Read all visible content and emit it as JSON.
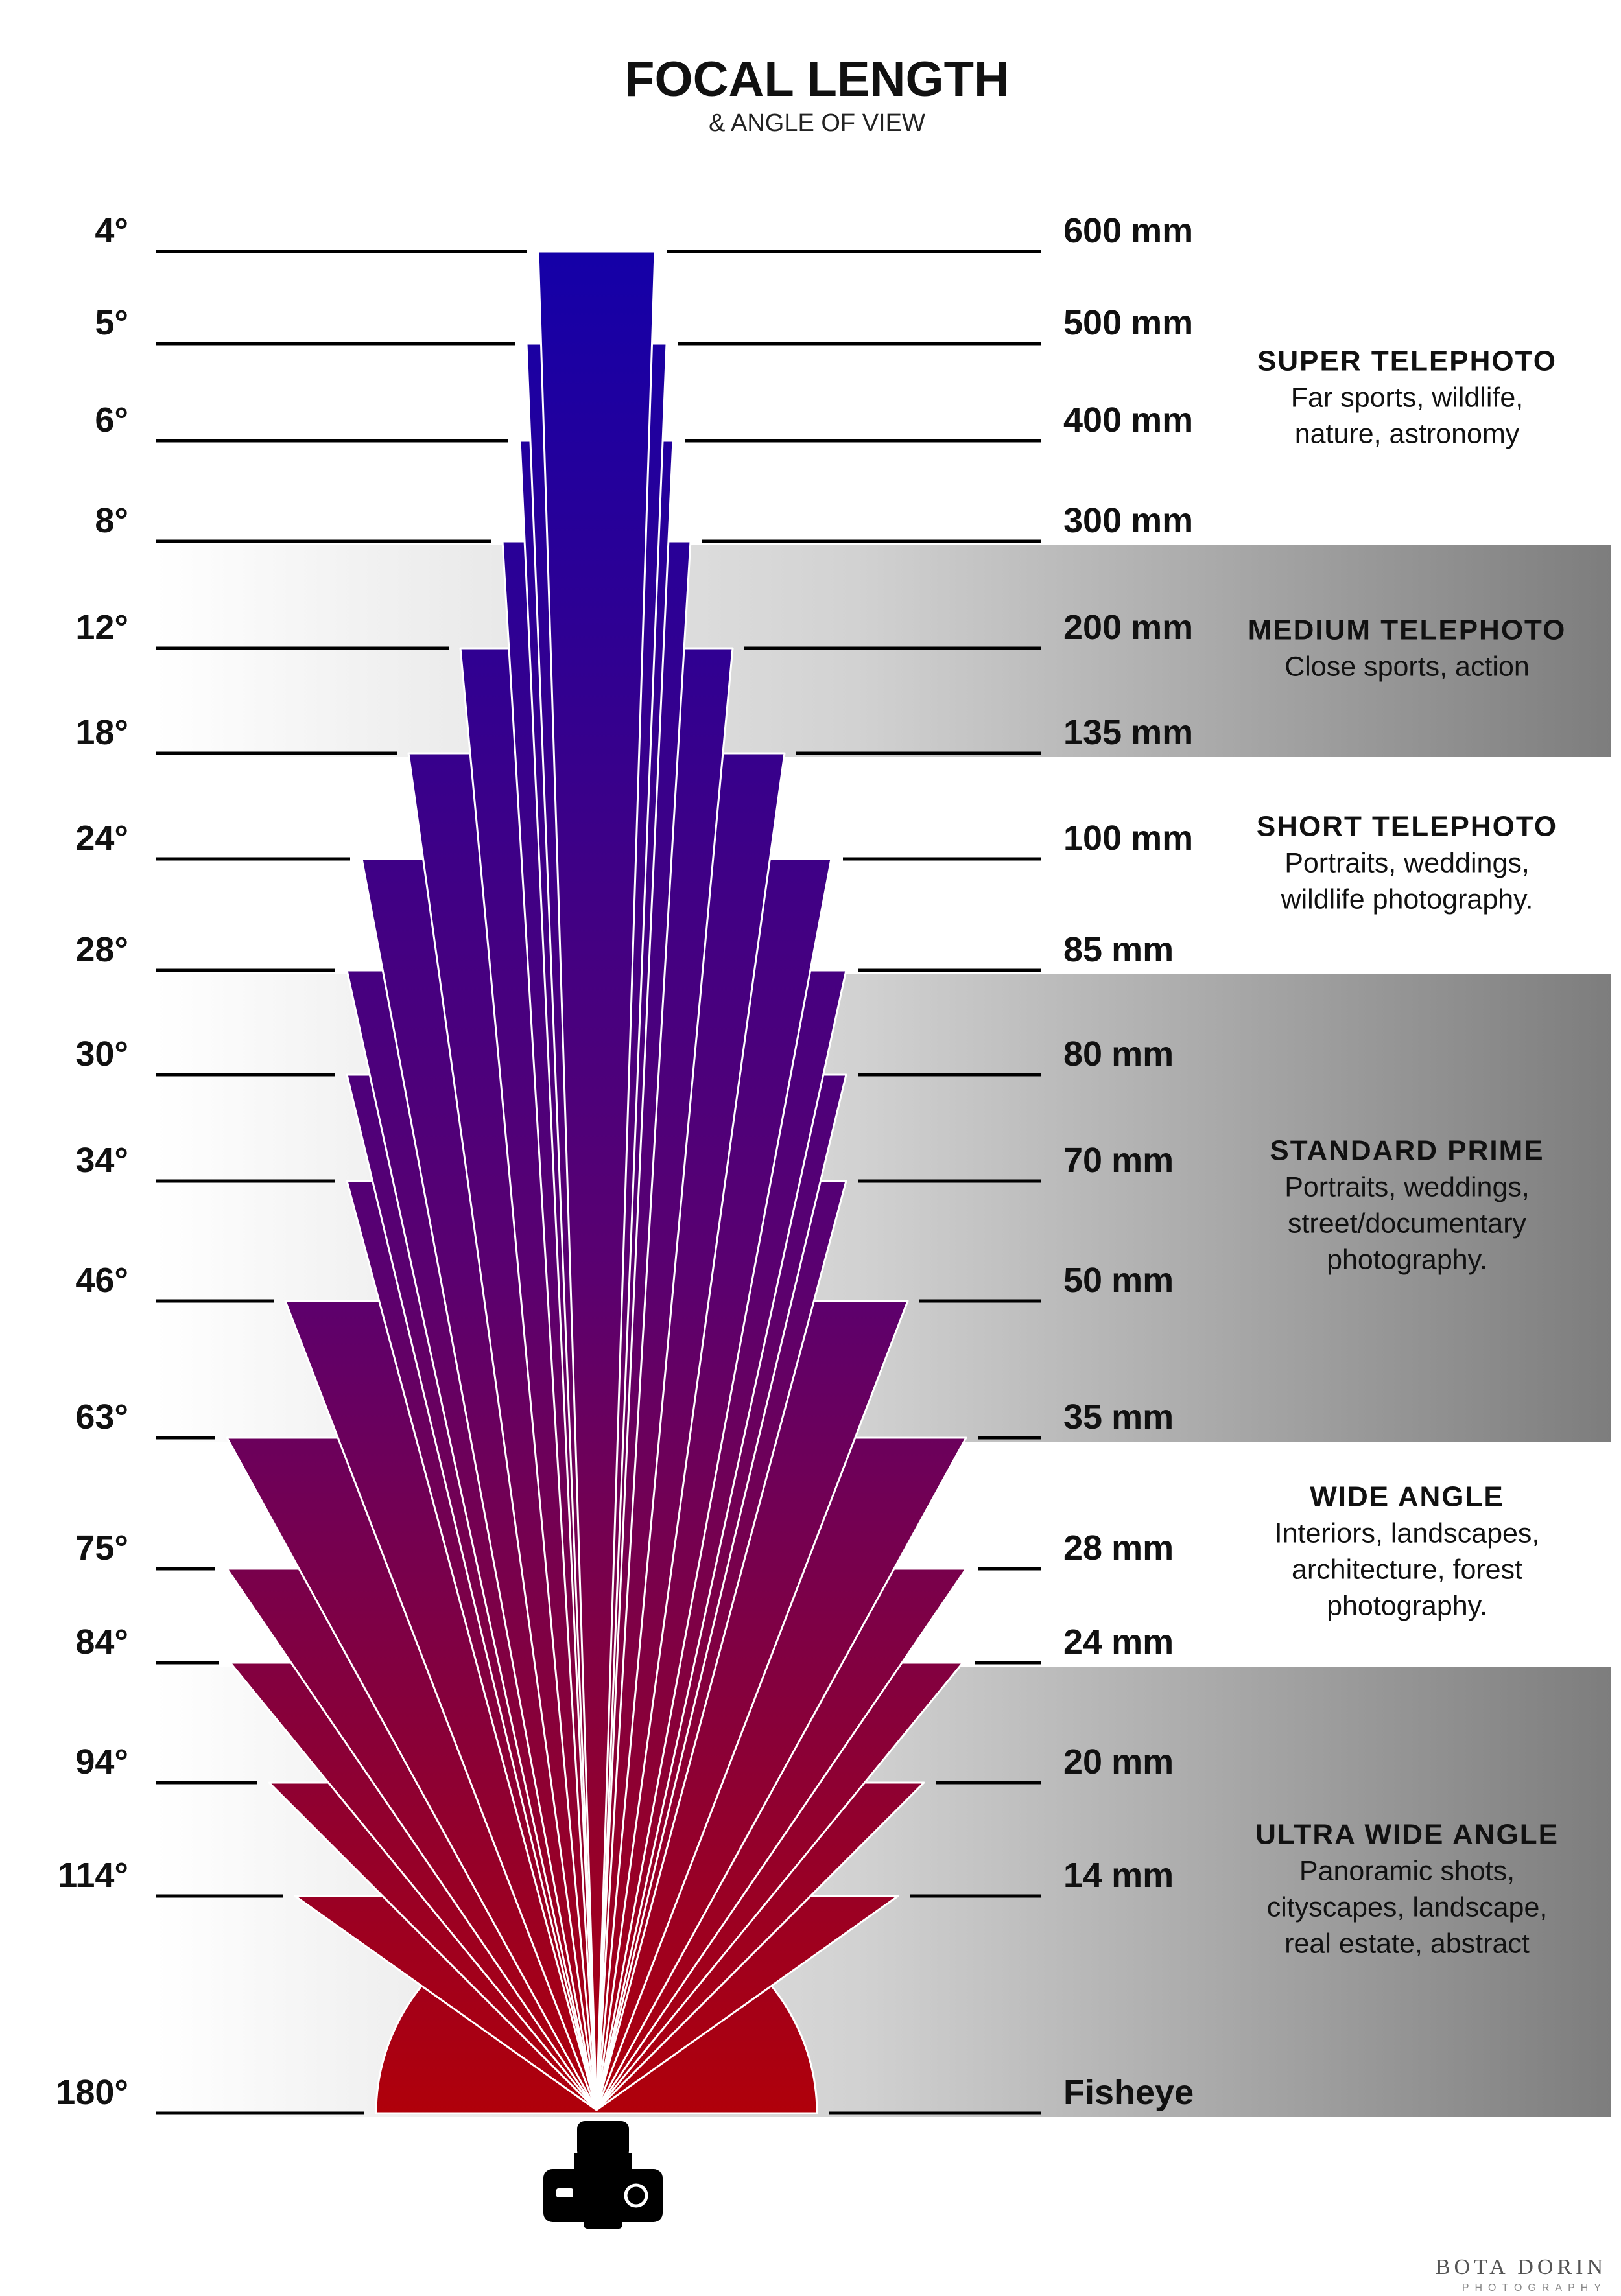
{
  "title": "FOCAL LENGTH",
  "subtitle": "& ANGLE OF VIEW",
  "colors": {
    "fan_top": "#1400a8",
    "fan_bottom": "#b0000a",
    "band_light": "#ffffff",
    "band_dark": "#7d7d7d",
    "text": "#111111"
  },
  "rows": [
    {
      "angle_deg": 4,
      "angle": "4°",
      "mm": "600",
      "unit": "mm"
    },
    {
      "angle_deg": 5,
      "angle": "5°",
      "mm": "500",
      "unit": "mm"
    },
    {
      "angle_deg": 6,
      "angle": "6°",
      "mm": "400",
      "unit": "mm"
    },
    {
      "angle_deg": 8,
      "angle": "8°",
      "mm": "300",
      "unit": "mm"
    },
    {
      "angle_deg": 12,
      "angle": "12°",
      "mm": "200",
      "unit": "mm"
    },
    {
      "angle_deg": 18,
      "angle": "18°",
      "mm": "135",
      "unit": "mm"
    },
    {
      "angle_deg": 24,
      "angle": "24°",
      "mm": "100",
      "unit": "mm"
    },
    {
      "angle_deg": 28,
      "angle": "28°",
      "mm": "85",
      "unit": "mm"
    },
    {
      "angle_deg": 30,
      "angle": "30°",
      "mm": "80",
      "unit": "mm"
    },
    {
      "angle_deg": 34,
      "angle": "34°",
      "mm": "70",
      "unit": "mm"
    },
    {
      "angle_deg": 46,
      "angle": "46°",
      "mm": "50",
      "unit": "mm"
    },
    {
      "angle_deg": 63,
      "angle": "63°",
      "mm": "35",
      "unit": "mm"
    },
    {
      "angle_deg": 75,
      "angle": "75°",
      "mm": "28",
      "unit": "mm"
    },
    {
      "angle_deg": 84,
      "angle": "84°",
      "mm": "24",
      "unit": "mm"
    },
    {
      "angle_deg": 94,
      "angle": "94°",
      "mm": "20",
      "unit": "mm"
    },
    {
      "angle_deg": 114,
      "angle": "114°",
      "mm": "14",
      "unit": "mm"
    },
    {
      "angle_deg": 180,
      "angle": "180°",
      "mm": "Fisheye",
      "unit": ""
    }
  ],
  "categories": [
    {
      "name": "SUPER TELEPHOTO",
      "lines": [
        "Far sports, wildlife,",
        "nature, astronomy"
      ],
      "shaded": false,
      "from_row": 0,
      "to_row": 3
    },
    {
      "name": "MEDIUM TELEPHOTO",
      "lines": [
        "Close sports, action"
      ],
      "shaded": true,
      "from_row": 3,
      "to_row": 5
    },
    {
      "name": "SHORT TELEPHOTO",
      "lines": [
        "Portraits, weddings,",
        "wildlife photography."
      ],
      "shaded": false,
      "from_row": 5,
      "to_row": 7
    },
    {
      "name": "STANDARD PRIME",
      "lines": [
        "Portraits, weddings,",
        "street/documentary",
        "photography."
      ],
      "shaded": true,
      "from_row": 7,
      "to_row": 11
    },
    {
      "name": "WIDE ANGLE",
      "lines": [
        "Interiors, landscapes,",
        "architecture, forest",
        "photography."
      ],
      "shaded": false,
      "from_row": 11,
      "to_row": 13
    },
    {
      "name": "ULTRA WIDE ANGLE",
      "lines": [
        "Panoramic shots,",
        "cityscapes, landscape,",
        "real estate, abstract"
      ],
      "shaded": true,
      "from_row": 13,
      "to_row": 16
    }
  ],
  "watermark": {
    "name": "BOTA DORIN",
    "sub": "PHOTOGRAPHY"
  }
}
